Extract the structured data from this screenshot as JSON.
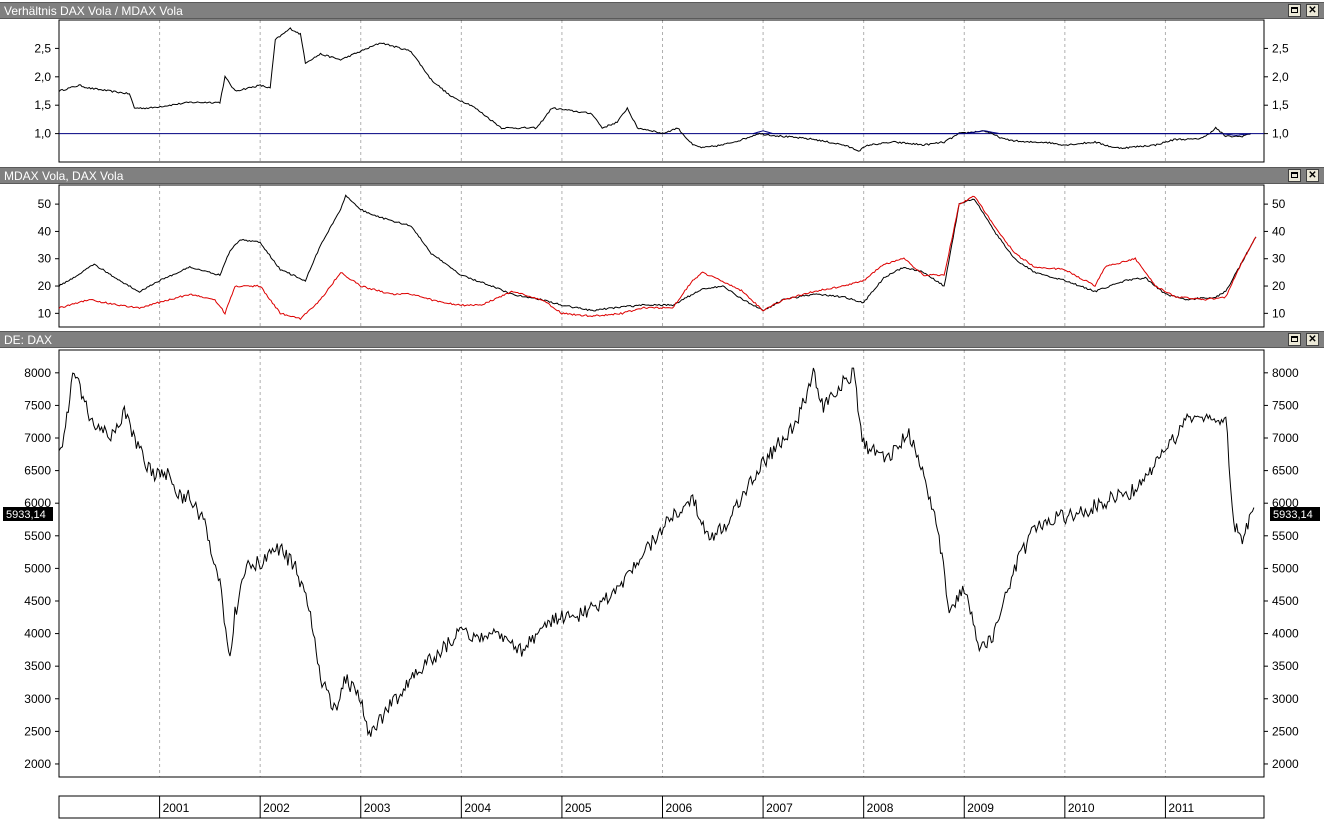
{
  "panels": [
    {
      "title": "Verhältnis DAX Vola / MDAX Vola",
      "maximize_icon": "maximize-icon",
      "close_icon": "close-icon",
      "close_glyph": "✕"
    },
    {
      "title": "MDAX Vola,  DAX Vola",
      "maximize_icon": "maximize-icon",
      "close_icon": "close-icon",
      "close_glyph": "✕"
    },
    {
      "title": "DE: DAX",
      "maximize_icon": "maximize-icon",
      "close_icon": "close-icon",
      "close_glyph": "✕"
    }
  ],
  "last_value_label": "5933,14",
  "colors": {
    "series_black": "#000000",
    "series_red": "#dd0000",
    "reference_line": "#000080",
    "grid": "#b0b0b0",
    "titlebar": "#808080"
  },
  "chart_data": [
    {
      "type": "line",
      "title": "Verhältnis DAX Vola / MDAX Vola",
      "x_range": [
        2000.0,
        2011.98
      ],
      "ylim": [
        0.5,
        3.0
      ],
      "yticks": [
        "1,0",
        "1,5",
        "2,0",
        "2,5"
      ],
      "ytick_values": [
        1.0,
        1.5,
        2.0,
        2.5
      ],
      "reference_line": 1.0,
      "series": [
        {
          "color": "#000000",
          "x": [
            2000.0,
            2000.2,
            2000.3,
            2000.5,
            2000.7,
            2000.75,
            2000.9,
            2001.1,
            2001.3,
            2001.5,
            2001.6,
            2001.65,
            2001.75,
            2002.0,
            2002.1,
            2002.15,
            2002.3,
            2002.4,
            2002.45,
            2002.6,
            2002.8,
            2003.0,
            2003.2,
            2003.5,
            2003.7,
            2003.9,
            2004.1,
            2004.4,
            2004.6,
            2004.75,
            2004.9,
            2005.1,
            2005.3,
            2005.4,
            2005.55,
            2005.65,
            2005.75,
            2005.9,
            2006.0,
            2006.15,
            2006.3,
            2006.4,
            2006.6,
            2006.8,
            2006.95,
            2007.2,
            2007.5,
            2007.8,
            2007.95,
            2008.05,
            2008.3,
            2008.6,
            2008.8,
            2008.95,
            2009.2,
            2009.4,
            2009.6,
            2009.8,
            2010.0,
            2010.3,
            2010.5,
            2010.6,
            2010.9,
            2011.1,
            2011.3,
            2011.4,
            2011.5,
            2011.6,
            2011.75,
            2011.85
          ],
          "y": [
            1.75,
            1.85,
            1.8,
            1.75,
            1.7,
            1.45,
            1.45,
            1.5,
            1.55,
            1.55,
            1.55,
            2.0,
            1.75,
            1.85,
            1.8,
            2.65,
            2.85,
            2.75,
            2.25,
            2.4,
            2.3,
            2.45,
            2.6,
            2.45,
            1.95,
            1.65,
            1.5,
            1.1,
            1.1,
            1.1,
            1.45,
            1.4,
            1.35,
            1.1,
            1.2,
            1.45,
            1.1,
            1.05,
            1.0,
            1.1,
            0.8,
            0.75,
            0.8,
            0.9,
            1.0,
            0.95,
            0.9,
            0.8,
            0.7,
            0.8,
            0.85,
            0.8,
            0.85,
            1.0,
            1.05,
            0.9,
            0.85,
            0.85,
            0.8,
            0.85,
            0.75,
            0.75,
            0.8,
            0.9,
            0.9,
            0.95,
            1.1,
            0.95,
            0.95,
            1.0
          ]
        },
        {
          "color": "#000080",
          "x": [
            2006.9,
            2007.0,
            2007.1,
            2009.0,
            2009.2,
            2009.35,
            2011.55,
            2011.7,
            2011.85
          ],
          "y": [
            1.0,
            1.05,
            1.0,
            1.0,
            1.05,
            1.0,
            1.0,
            0.97,
            1.0
          ]
        }
      ]
    },
    {
      "type": "line",
      "title": "MDAX Vola,  DAX Vola",
      "x_range": [
        2000.0,
        2011.98
      ],
      "ylim": [
        5,
        57
      ],
      "yticks": [
        "10",
        "20",
        "30",
        "40",
        "50"
      ],
      "ytick_values": [
        10,
        20,
        30,
        40,
        50
      ],
      "series": [
        {
          "color": "#000000",
          "x": [
            2000.0,
            2000.1,
            2000.35,
            2000.6,
            2000.8,
            2001.0,
            2001.3,
            2001.6,
            2001.7,
            2001.8,
            2002.0,
            2002.2,
            2002.45,
            2002.6,
            2002.8,
            2002.85,
            2003.0,
            2003.2,
            2003.5,
            2003.7,
            2004.0,
            2004.3,
            2004.5,
            2004.8,
            2005.0,
            2005.3,
            2005.5,
            2005.8,
            2006.1,
            2006.3,
            2006.4,
            2006.6,
            2006.8,
            2007.0,
            2007.2,
            2007.5,
            2007.8,
            2008.0,
            2008.2,
            2008.4,
            2008.6,
            2008.8,
            2008.95,
            2009.1,
            2009.3,
            2009.5,
            2009.7,
            2010.0,
            2010.3,
            2010.6,
            2010.8,
            2011.0,
            2011.2,
            2011.5,
            2011.6,
            2011.75,
            2011.9
          ],
          "y": [
            20,
            22,
            28,
            22,
            18,
            22,
            27,
            24,
            33,
            37,
            36,
            26,
            22,
            35,
            48,
            53,
            48,
            45,
            42,
            32,
            24,
            20,
            17,
            15,
            13,
            11,
            12,
            13,
            13,
            17,
            19,
            20,
            15,
            11,
            15,
            17,
            16,
            14,
            23,
            27,
            25,
            20,
            50,
            52,
            40,
            30,
            25,
            22,
            18,
            22,
            23,
            17,
            15,
            16,
            18,
            28,
            38
          ]
        },
        {
          "color": "#dd0000",
          "x": [
            2000.0,
            2000.3,
            2000.6,
            2000.8,
            2001.1,
            2001.3,
            2001.55,
            2001.65,
            2001.75,
            2002.0,
            2002.2,
            2002.4,
            2002.6,
            2002.8,
            2003.0,
            2003.3,
            2003.5,
            2003.8,
            2004.0,
            2004.2,
            2004.5,
            2004.8,
            2005.0,
            2005.3,
            2005.6,
            2005.8,
            2006.1,
            2006.3,
            2006.4,
            2006.7,
            2006.8,
            2007.0,
            2007.2,
            2007.5,
            2007.8,
            2008.0,
            2008.2,
            2008.4,
            2008.6,
            2008.8,
            2008.95,
            2009.1,
            2009.3,
            2009.5,
            2009.7,
            2010.0,
            2010.3,
            2010.4,
            2010.7,
            2010.9,
            2011.1,
            2011.4,
            2011.6,
            2011.75,
            2011.9
          ],
          "y": [
            12,
            15,
            13,
            12,
            15,
            17,
            15,
            10,
            20,
            20,
            10,
            8,
            15,
            25,
            20,
            17,
            17,
            14,
            13,
            13,
            18,
            15,
            10,
            9,
            10,
            12,
            12,
            22,
            25,
            20,
            18,
            11,
            15,
            18,
            20,
            22,
            28,
            30,
            24,
            24,
            50,
            53,
            42,
            32,
            27,
            26,
            20,
            27,
            30,
            20,
            16,
            15,
            16,
            28,
            38
          ]
        }
      ]
    },
    {
      "type": "line",
      "title": "DE: DAX",
      "x_range": [
        2000.0,
        2011.98
      ],
      "ylim": [
        1800,
        8350
      ],
      "yticks": [
        "2000",
        "2500",
        "3000",
        "3500",
        "4000",
        "4500",
        "5000",
        "5500",
        "6000",
        "6500",
        "7000",
        "7500",
        "8000"
      ],
      "ytick_values": [
        2000,
        2500,
        3000,
        3500,
        4000,
        4500,
        5000,
        5500,
        6000,
        6500,
        7000,
        7500,
        8000
      ],
      "last_value": "5933,14",
      "xticks": [
        "2001",
        "2002",
        "2003",
        "2004",
        "2005",
        "2006",
        "2007",
        "2008",
        "2009",
        "2010",
        "2011"
      ],
      "xtick_values": [
        2001,
        2002,
        2003,
        2004,
        2005,
        2006,
        2007,
        2008,
        2009,
        2010,
        2011
      ],
      "series": [
        {
          "color": "#000000",
          "x": [
            2000.0,
            2000.05,
            2000.15,
            2000.3,
            2000.5,
            2000.65,
            2000.8,
            2000.95,
            2001.05,
            2001.2,
            2001.3,
            2001.45,
            2001.6,
            2001.7,
            2001.75,
            2001.85,
            2002.0,
            2002.2,
            2002.35,
            2002.5,
            2002.6,
            2002.75,
            2002.85,
            2003.0,
            2003.1,
            2003.2,
            2003.35,
            2003.5,
            2003.7,
            2003.9,
            2004.0,
            2004.2,
            2004.4,
            2004.6,
            2004.8,
            2005.0,
            2005.2,
            2005.35,
            2005.5,
            2005.7,
            2005.9,
            2006.1,
            2006.3,
            2006.45,
            2006.6,
            2006.8,
            2007.0,
            2007.15,
            2007.35,
            2007.5,
            2007.6,
            2007.75,
            2007.9,
            2008.0,
            2008.1,
            2008.25,
            2008.45,
            2008.6,
            2008.75,
            2008.85,
            2009.0,
            2009.15,
            2009.3,
            2009.5,
            2009.7,
            2009.9,
            2010.1,
            2010.35,
            2010.5,
            2010.7,
            2010.95,
            2011.1,
            2011.2,
            2011.35,
            2011.5,
            2011.6,
            2011.68,
            2011.75,
            2011.82,
            2011.88
          ],
          "y": [
            6900,
            7000,
            8100,
            7300,
            7000,
            7400,
            6800,
            6400,
            6500,
            6100,
            6100,
            5700,
            4800,
            3600,
            4300,
            5000,
            5100,
            5300,
            5000,
            4300,
            3300,
            2800,
            3300,
            3000,
            2400,
            2700,
            3000,
            3300,
            3600,
            3900,
            4000,
            3900,
            4000,
            3750,
            4100,
            4250,
            4300,
            4400,
            4600,
            5000,
            5400,
            5800,
            6100,
            5500,
            5600,
            6100,
            6600,
            6900,
            7300,
            8000,
            7500,
            7800,
            8000,
            6900,
            6800,
            6700,
            7100,
            6400,
            5500,
            4400,
            4700,
            3800,
            4000,
            5000,
            5600,
            5800,
            5800,
            6000,
            6100,
            6200,
            6700,
            7000,
            7300,
            7400,
            7200,
            7300,
            5700,
            5400,
            5700,
            5933.14
          ]
        }
      ]
    }
  ]
}
